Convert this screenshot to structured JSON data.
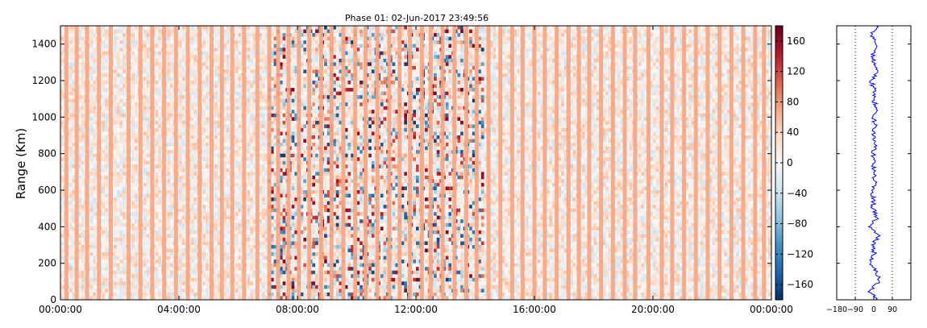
{
  "figure_title": "Phase 01: 02-Jun-2017 23:49:56",
  "chart_data": [
    {
      "type": "heatmap",
      "title": "Phase 01: 02-Jun-2017 23:49:56",
      "xlabel": "",
      "ylabel": "Range (Km)",
      "x_tick_labels": [
        "00:00:00",
        "04:00:00",
        "08:00:00",
        "12:00:00",
        "16:00:00",
        "20:00:00",
        "00:00:00"
      ],
      "x_hours": [
        0,
        24
      ],
      "ylim": [
        0,
        1500
      ],
      "y_ticks": [
        0,
        200,
        400,
        600,
        800,
        1000,
        1200,
        1400
      ],
      "colorbar": {
        "range": [
          -180,
          180
        ],
        "ticks": [
          -160,
          -120,
          -80,
          -40,
          0,
          40,
          80,
          120,
          160
        ],
        "colormap": "RdBu_r",
        "colors": [
          "#053061",
          "#2166ac",
          "#4393c3",
          "#92c5de",
          "#d1e5f0",
          "#f7f7f7",
          "#fddbc7",
          "#f4a582",
          "#d6604d",
          "#b2182b",
          "#67001f"
        ]
      },
      "constant_phase_columns_hours": [
        0.2,
        0.55,
        0.9,
        1.3,
        1.7,
        2.3,
        2.7,
        3.1,
        3.5,
        3.9,
        4.3,
        4.7,
        5.1,
        5.45,
        5.8,
        6.2,
        6.65,
        7.05,
        7.35,
        7.7,
        8.05,
        8.4,
        8.8,
        9.15,
        9.55,
        9.95,
        10.3,
        10.7,
        11.1,
        11.45,
        11.8,
        12.2,
        12.5,
        12.9,
        13.3,
        13.7,
        14.05,
        14.45,
        14.85,
        15.25,
        15.6,
        16.0,
        16.35,
        16.75,
        17.15,
        17.5,
        17.85,
        18.25,
        18.65,
        19.05,
        19.4,
        19.85,
        20.3,
        20.65,
        21.05,
        21.45,
        21.85,
        22.25,
        22.65,
        23.05,
        23.45,
        23.75
      ],
      "high_activity_window_hours": [
        7.0,
        14.3
      ],
      "grid": false
    },
    {
      "type": "line",
      "title": "",
      "xlabel": "",
      "ylabel": "",
      "xlim": [
        -180,
        180
      ],
      "x_tick_labels": [
        "−180",
        "−90",
        "0",
        "90"
      ],
      "x_ticks": [
        -180,
        -90,
        0,
        90
      ],
      "ylim": [
        0,
        1500
      ],
      "reference_lines_x": [
        -90,
        90
      ],
      "series": [
        {
          "color": "#0000ff",
          "y": [
            0,
            50,
            100,
            150,
            200,
            250,
            300,
            350,
            400,
            450,
            500,
            550,
            600,
            650,
            700,
            750,
            800,
            850,
            900,
            950,
            1000,
            1050,
            1100,
            1150,
            1200,
            1250,
            1300,
            1350,
            1400,
            1450,
            1500
          ],
          "x": [
            10,
            -20,
            25,
            15,
            -15,
            5,
            -10,
            30,
            -25,
            15,
            -5,
            0,
            -10,
            5,
            0,
            3,
            -3,
            5,
            -5,
            10,
            -5,
            15,
            0,
            5,
            -15,
            20,
            -5,
            0,
            10,
            -8,
            12
          ]
        }
      ]
    }
  ]
}
